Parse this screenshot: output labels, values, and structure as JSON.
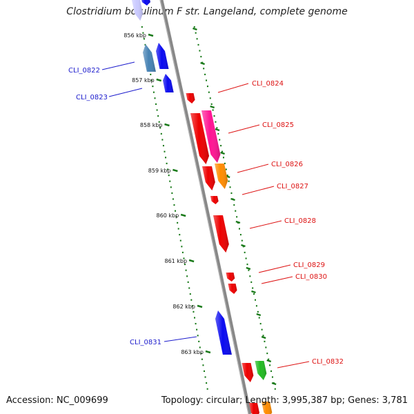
{
  "title": "Clostridium botulinum F str. Langeland, complete genome",
  "footer": {
    "accession": "Accession: NC_009699",
    "topology": "Topology: circular; Length: 3,995,387 bp; Genes: 3,781"
  },
  "kbp_ticks": [
    "856 kbp",
    "857 kbp",
    "858 kbp",
    "859 kbp",
    "860 kbp",
    "861 kbp",
    "862 kbp",
    "863 kbp"
  ],
  "colors": {
    "blue": "#0a0af0",
    "steelblue": "#4682b4",
    "red": "#ee0000",
    "pink": "#ff1493",
    "orange": "#ff8c00",
    "green": "#22bb22",
    "lavender": "#c9c9ff",
    "backbone": "#888888",
    "tick": "#1a7a1a"
  },
  "genes": [
    {
      "label": "CLI_0822",
      "strand": "minus",
      "color": "steelblue"
    },
    {
      "label": "CLI_0823",
      "strand": "minus",
      "color": "blue"
    },
    {
      "label": "CLI_0824",
      "strand": "plus",
      "color": "red"
    },
    {
      "label": "CLI_0825",
      "strand": "plus",
      "color": "pink"
    },
    {
      "label": "CLI_0826",
      "strand": "plus",
      "color": "red"
    },
    {
      "label": "CLI_0827",
      "strand": "plus",
      "color": "orange"
    },
    {
      "label": "CLI_0828",
      "strand": "plus",
      "color": "red"
    },
    {
      "label": "CLI_0829",
      "strand": "plus",
      "color": "red"
    },
    {
      "label": "CLI_0830",
      "strand": "plus",
      "color": "red"
    },
    {
      "label": "CLI_0831",
      "strand": "minus",
      "color": "blue"
    },
    {
      "label": "CLI_0832",
      "strand": "plus",
      "color": "green"
    }
  ],
  "unlabeled_features": [
    {
      "color": "blue"
    },
    {
      "color": "red"
    },
    {
      "color": "lavender"
    },
    {
      "color": "red"
    },
    {
      "color": "orange"
    }
  ]
}
